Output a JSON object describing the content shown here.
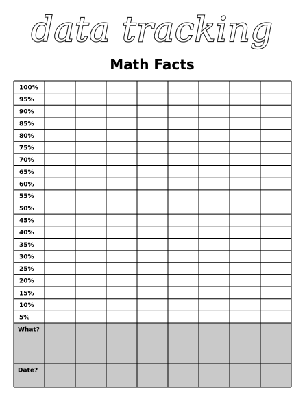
{
  "header": {
    "title": "data tracking",
    "subtitle": "Math Facts"
  },
  "table": {
    "rows": [
      "100%",
      "95%",
      "90%",
      "85%",
      "80%",
      "75%",
      "70%",
      "65%",
      "60%",
      "55%",
      "50%",
      "45%",
      "40%",
      "35%",
      "30%",
      "25%",
      "20%",
      "15%",
      "10%",
      "5%"
    ],
    "footer_rows": [
      "What?",
      "Date?"
    ]
  }
}
